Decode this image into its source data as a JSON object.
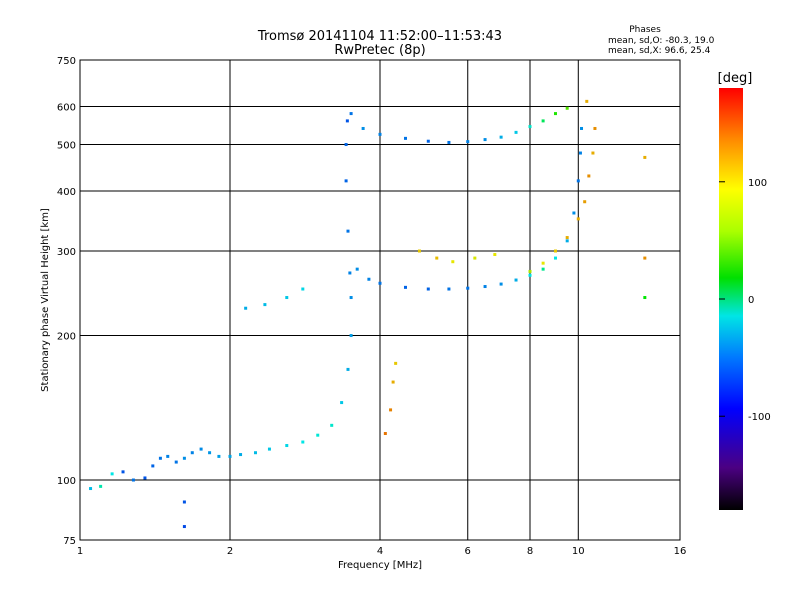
{
  "chart_data": {
    "type": "scatter",
    "title": "Tromsø 20141104 11:52:00–11:53:43",
    "subtitle": "RwPretec (8p)",
    "xlabel": "Frequency [MHz]",
    "ylabel": "Stationary phase Virtual Height [km]",
    "x_scale": "log",
    "y_scale": "log",
    "xlim": [
      1,
      16
    ],
    "ylim": [
      75,
      750
    ],
    "x_ticks": [
      1,
      2,
      4,
      6,
      8,
      10,
      16
    ],
    "y_ticks": [
      75,
      100,
      200,
      300,
      400,
      500,
      600,
      750
    ],
    "grid": true,
    "phases_box": {
      "header": "Phases",
      "line_o": "mean, sd,O: -80.3, 19.0",
      "line_x": "mean, sd,X:  96.6, 25.4"
    },
    "colorbar": {
      "label": "[deg]",
      "ticks": [
        100,
        0,
        -100
      ],
      "range": [
        -180,
        180
      ]
    },
    "series": [
      {
        "values_note": "",
        "points": [
          [
            1.05,
            96,
            -75
          ],
          [
            1.1,
            97,
            -40
          ],
          [
            1.16,
            103,
            -60
          ],
          [
            1.22,
            104,
            -110
          ],
          [
            1.28,
            100,
            -100
          ],
          [
            1.35,
            101,
            -110
          ],
          [
            1.4,
            107,
            -105
          ],
          [
            1.45,
            111,
            -100
          ],
          [
            1.5,
            112,
            -95
          ],
          [
            1.56,
            109,
            -100
          ],
          [
            1.62,
            111,
            -90
          ],
          [
            1.68,
            114,
            -95
          ],
          [
            1.75,
            116,
            -92
          ],
          [
            1.82,
            114,
            -88
          ],
          [
            1.9,
            112,
            -85
          ],
          [
            2.0,
            112,
            -82
          ],
          [
            2.1,
            113,
            -80
          ],
          [
            2.25,
            114,
            -75
          ],
          [
            2.4,
            116,
            -70
          ],
          [
            2.6,
            118,
            -65
          ],
          [
            2.8,
            120,
            -60
          ],
          [
            3.0,
            124,
            -55
          ],
          [
            3.2,
            130,
            -50
          ],
          [
            3.35,
            145,
            -70
          ],
          [
            3.45,
            170,
            -80
          ],
          [
            3.5,
            200,
            -85
          ],
          [
            3.5,
            240,
            -90
          ],
          [
            3.48,
            270,
            -95
          ],
          [
            3.45,
            330,
            -100
          ],
          [
            3.42,
            420,
            -105
          ],
          [
            3.42,
            500,
            -105
          ],
          [
            3.44,
            560,
            -110
          ],
          [
            3.5,
            580,
            -100
          ],
          [
            3.7,
            540,
            -90
          ],
          [
            4.0,
            525,
            -95
          ],
          [
            4.5,
            515,
            -100
          ],
          [
            5.0,
            508,
            -105
          ],
          [
            5.5,
            505,
            -100
          ],
          [
            6.0,
            507,
            -95
          ],
          [
            6.5,
            512,
            -90
          ],
          [
            7.0,
            518,
            -80
          ],
          [
            7.5,
            530,
            -70
          ],
          [
            8.0,
            545,
            -50
          ],
          [
            8.5,
            560,
            -10
          ],
          [
            9.0,
            580,
            30
          ],
          [
            9.5,
            595,
            50
          ],
          [
            10.4,
            615,
            120
          ],
          [
            3.6,
            275,
            -90
          ],
          [
            3.8,
            262,
            -95
          ],
          [
            4.0,
            257,
            -100
          ],
          [
            4.5,
            252,
            -105
          ],
          [
            5.0,
            250,
            -105
          ],
          [
            5.5,
            250,
            -100
          ],
          [
            6.0,
            251,
            -100
          ],
          [
            6.5,
            253,
            -95
          ],
          [
            7.0,
            256,
            -90
          ],
          [
            7.5,
            261,
            -80
          ],
          [
            8.0,
            267,
            -60
          ],
          [
            8.5,
            275,
            -30
          ],
          [
            9.0,
            290,
            -60
          ],
          [
            9.5,
            315,
            -80
          ],
          [
            9.8,
            360,
            -90
          ],
          [
            10.0,
            420,
            -100
          ],
          [
            10.1,
            480,
            -95
          ],
          [
            10.15,
            540,
            -90
          ],
          [
            8.0,
            272,
            80
          ],
          [
            8.5,
            283,
            100
          ],
          [
            9.0,
            300,
            110
          ],
          [
            9.5,
            320,
            120
          ],
          [
            10.0,
            350,
            120
          ],
          [
            10.3,
            380,
            125
          ],
          [
            10.5,
            430,
            130
          ],
          [
            10.7,
            480,
            120
          ],
          [
            10.8,
            540,
            130
          ],
          [
            4.1,
            125,
            140
          ],
          [
            4.2,
            140,
            135
          ],
          [
            4.25,
            160,
            120
          ],
          [
            4.3,
            175,
            110
          ],
          [
            4.8,
            300,
            110
          ],
          [
            5.2,
            290,
            115
          ],
          [
            5.6,
            285,
            100
          ],
          [
            6.2,
            290,
            95
          ],
          [
            6.8,
            295,
            100
          ],
          [
            2.15,
            228,
            -80
          ],
          [
            2.35,
            232,
            -75
          ],
          [
            2.6,
            240,
            -70
          ],
          [
            2.8,
            250,
            -65
          ],
          [
            1.62,
            90,
            -110
          ],
          [
            1.62,
            80,
            -115
          ],
          [
            13.6,
            470,
            120
          ],
          [
            13.6,
            290,
            130
          ],
          [
            13.6,
            240,
            20
          ]
        ]
      }
    ]
  }
}
